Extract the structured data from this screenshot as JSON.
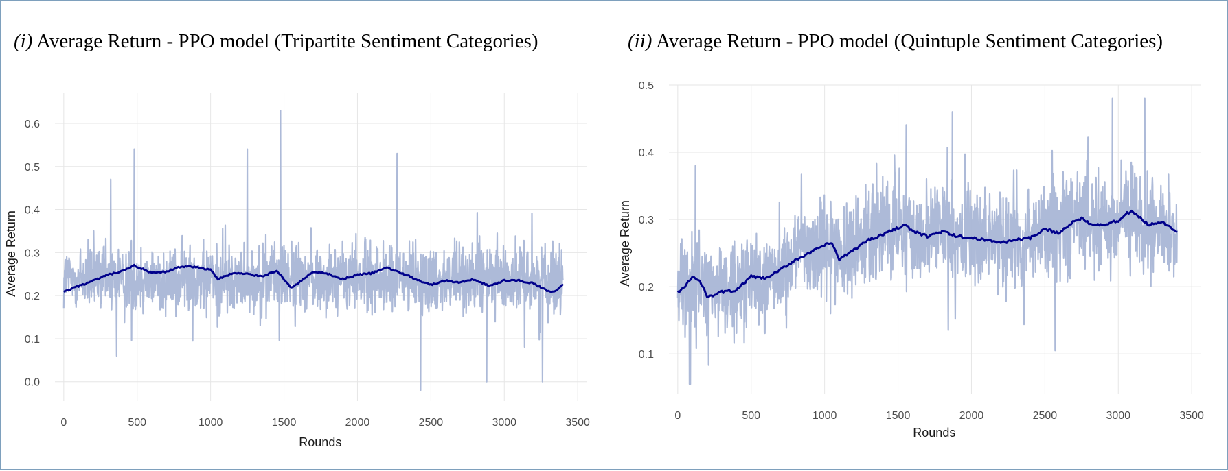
{
  "colors": {
    "raw_line": "#a9b6d6",
    "moving_average": "#00008b",
    "grid": "#e6e6e6",
    "frame_border": "#7ea0bd"
  },
  "chart_data": [
    {
      "type": "line",
      "title_prefix": "(i)",
      "title": "Average Return - PPO model (Tripartite Sentiment Categories)",
      "xlabel": "Rounds",
      "ylabel": "Average Return",
      "xlim": [
        -60,
        3560
      ],
      "ylim": [
        -0.045,
        0.67
      ],
      "xticks": [
        0,
        500,
        1000,
        1500,
        2000,
        2500,
        3000,
        3500
      ],
      "xtick_labels": [
        "0",
        "500",
        "1000",
        "1500",
        "2000",
        "2500",
        "3000",
        "3500"
      ],
      "yticks": [
        0.0,
        0.1,
        0.2,
        0.3,
        0.4,
        0.5,
        0.6
      ],
      "ytick_labels": [
        "0.0",
        "0.1",
        "0.2",
        "0.3",
        "0.4",
        "0.5",
        "0.6"
      ],
      "grid": true,
      "n_rounds": 3400,
      "series": [
        {
          "name": "Raw average return",
          "style": "light-blue noisy line",
          "mean": 0.24,
          "noise": 0.07,
          "max": 0.63,
          "min": -0.02,
          "spikes": [
            [
              480,
              0.54
            ],
            [
              1250,
              0.54
            ],
            [
              1475,
              0.63
            ],
            [
              2270,
              0.53
            ],
            [
              320,
              0.47
            ],
            [
              2430,
              -0.02
            ],
            [
              2880,
              0.0
            ],
            [
              3260,
              0.0
            ],
            [
              360,
              0.06
            ]
          ]
        },
        {
          "name": "Moving average",
          "style": "dark-blue smoothed line",
          "x": [
            0,
            100,
            200,
            300,
            400,
            480,
            600,
            700,
            800,
            900,
            1000,
            1050,
            1150,
            1250,
            1350,
            1450,
            1550,
            1600,
            1700,
            1800,
            1900,
            2000,
            2100,
            2200,
            2300,
            2400,
            2500,
            2600,
            2700,
            2800,
            2900,
            3000,
            3100,
            3200,
            3300,
            3350,
            3400
          ],
          "values": [
            0.208,
            0.222,
            0.234,
            0.248,
            0.256,
            0.27,
            0.252,
            0.255,
            0.268,
            0.266,
            0.26,
            0.238,
            0.252,
            0.25,
            0.245,
            0.258,
            0.218,
            0.23,
            0.255,
            0.25,
            0.238,
            0.248,
            0.252,
            0.265,
            0.252,
            0.238,
            0.225,
            0.235,
            0.23,
            0.238,
            0.222,
            0.235,
            0.235,
            0.228,
            0.21,
            0.21,
            0.225
          ]
        }
      ]
    },
    {
      "type": "line",
      "title_prefix": "(ii)",
      "title": "Average Return - PPO model (Quintuple Sentiment Categories)",
      "xlabel": "Rounds",
      "ylabel": "Average Return",
      "xlim": [
        -60,
        3560
      ],
      "ylim": [
        0.04,
        0.5
      ],
      "xticks": [
        0,
        500,
        1000,
        1500,
        2000,
        2500,
        3000,
        3500
      ],
      "xtick_labels": [
        "0",
        "500",
        "1000",
        "1500",
        "2000",
        "2500",
        "3000",
        "3500"
      ],
      "yticks": [
        0.1,
        0.2,
        0.3,
        0.4,
        0.5
      ],
      "ytick_labels": [
        "0.1",
        "0.2",
        "0.3",
        "0.4",
        "0.5"
      ],
      "grid": true,
      "n_rounds": 3400,
      "series": [
        {
          "name": "Raw average return",
          "style": "light-blue noisy line",
          "mean_from_moving_average": true,
          "noise": 0.065,
          "max": 0.48,
          "min": 0.055,
          "spikes": [
            [
              1870,
              0.46
            ],
            [
              2960,
              0.48
            ],
            [
              3180,
              0.48
            ],
            [
              120,
              0.38
            ],
            [
              80,
              0.055
            ],
            [
              2570,
              0.105
            ],
            [
              1040,
              0.16
            ]
          ]
        },
        {
          "name": "Moving average",
          "style": "dark-blue smoothed line",
          "x": [
            0,
            50,
            100,
            150,
            200,
            250,
            300,
            400,
            500,
            600,
            700,
            800,
            900,
            1000,
            1050,
            1100,
            1200,
            1300,
            1400,
            1500,
            1550,
            1600,
            1700,
            1800,
            1900,
            2000,
            2100,
            2200,
            2300,
            2400,
            2500,
            2600,
            2700,
            2750,
            2800,
            2900,
            3000,
            3050,
            3100,
            3200,
            3300,
            3400
          ],
          "values": [
            0.192,
            0.2,
            0.215,
            0.208,
            0.186,
            0.188,
            0.192,
            0.195,
            0.215,
            0.212,
            0.225,
            0.24,
            0.25,
            0.262,
            0.265,
            0.24,
            0.255,
            0.27,
            0.278,
            0.288,
            0.292,
            0.282,
            0.275,
            0.282,
            0.275,
            0.272,
            0.27,
            0.265,
            0.27,
            0.272,
            0.285,
            0.28,
            0.298,
            0.302,
            0.295,
            0.292,
            0.298,
            0.308,
            0.312,
            0.292,
            0.295,
            0.282
          ]
        }
      ]
    }
  ]
}
